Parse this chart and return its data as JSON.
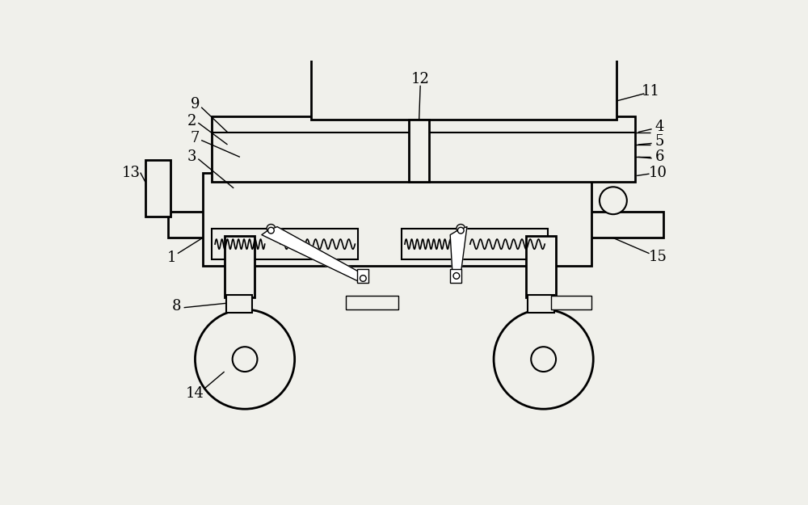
{
  "bg_color": "#f0f0eb",
  "line_color": "#000000",
  "lw_thin": 1.0,
  "lw_med": 1.5,
  "lw_thick": 2.0,
  "fig_w": 10.0,
  "fig_h": 6.25
}
